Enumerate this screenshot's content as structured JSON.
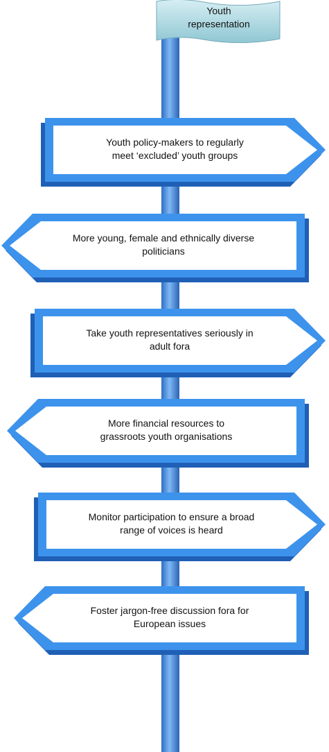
{
  "flag": {
    "lines": [
      "Youth",
      "representation"
    ]
  },
  "signs": [
    {
      "direction": "right",
      "lines": [
        "Youth policy-makers to regularly",
        "meet ‘excluded’ youth groups"
      ]
    },
    {
      "direction": "left",
      "lines": [
        "More young, female and ethnically diverse",
        "politicians"
      ]
    },
    {
      "direction": "right",
      "lines": [
        "Take youth representatives seriously in",
        "adult fora"
      ]
    },
    {
      "direction": "left",
      "lines": [
        "More financial resources to",
        "grassroots youth organisations"
      ]
    },
    {
      "direction": "right",
      "lines": [
        "Monitor participation to ensure a broad",
        "range of voices is heard"
      ]
    },
    {
      "direction": "left",
      "lines": [
        "Foster jargon-free discussion fora for",
        "European issues"
      ]
    }
  ]
}
